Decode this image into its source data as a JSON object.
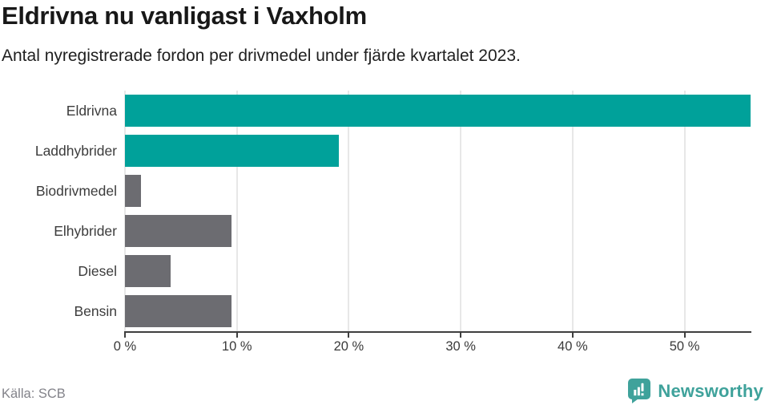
{
  "title": "Eldrivna nu vanligast i Vaxholm",
  "subtitle": "Antal nyregistrerade fordon per drivmedel under fjärde kvartalet 2023.",
  "source": "Källa: SCB",
  "brand": {
    "name": "Newsworthy",
    "icon": "newsworthy-speech-bubble-barchart-icon",
    "color": "#3fa29b"
  },
  "colors": {
    "accent": "#00a19a",
    "neutral": "#6c6c71",
    "gridline": "#e7e7e7",
    "axis": "#3f3f3f",
    "label_text": "#3c3c3c",
    "source_text": "#83838a"
  },
  "chart_data": {
    "type": "bar",
    "orientation": "horizontal",
    "title": "Eldrivna nu vanligast i Vaxholm",
    "subtitle": "Antal nyregistrerade fordon per drivmedel under fjärde kvartalet 2023.",
    "categories": [
      "Eldrivna",
      "Laddhybrider",
      "Biodrivmedel",
      "Elhybrider",
      "Diesel",
      "Bensin"
    ],
    "values": [
      55.9,
      19.1,
      1.4,
      9.5,
      4.1,
      9.5
    ],
    "unit": "%",
    "bar_colors": [
      "accent",
      "accent",
      "neutral",
      "neutral",
      "neutral",
      "neutral"
    ],
    "xlabel": "",
    "ylabel": "",
    "xlim": [
      0,
      55.9
    ],
    "x_ticks": [
      {
        "value": 0,
        "label": "0 %"
      },
      {
        "value": 10,
        "label": "10 %"
      },
      {
        "value": 20,
        "label": "20 %"
      },
      {
        "value": 30,
        "label": "30 %"
      },
      {
        "value": 40,
        "label": "40 %"
      },
      {
        "value": 50,
        "label": "50 %"
      }
    ],
    "grid": true,
    "legend": false
  }
}
